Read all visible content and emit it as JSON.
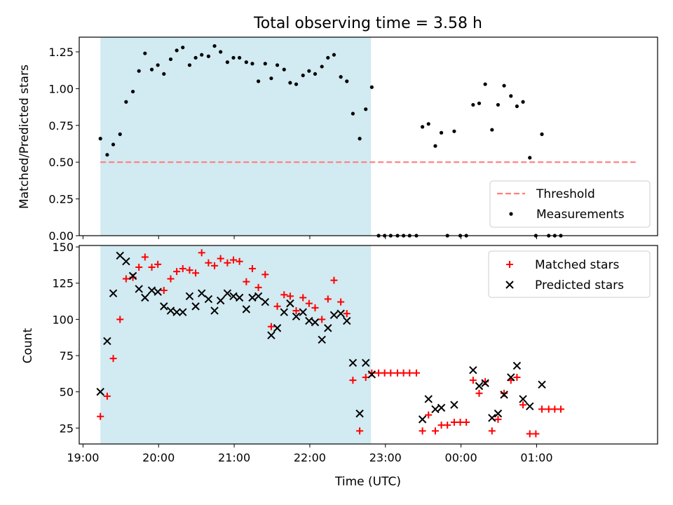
{
  "chart_data": [
    {
      "type": "scatter",
      "title": "Total observing time = 3.58 h",
      "ylabel": "Matched/Predicted stars",
      "xlabel": "",
      "x_unit": "hours_utc_since_19:00",
      "xlim": [
        18.95,
        26.6
      ],
      "ylim": [
        0.0,
        1.35
      ],
      "yticks": [
        "0.00",
        "0.25",
        "0.50",
        "0.75",
        "1.00",
        "1.25"
      ],
      "ytick_values": [
        0,
        0.25,
        0.5,
        0.75,
        1.0,
        1.25
      ],
      "shaded_span": [
        19.23,
        22.81
      ],
      "shade_color": "#add8e6",
      "grid": false,
      "legend_position": "lower-right",
      "threshold": {
        "name": "Threshold",
        "value": 0.5,
        "x_range": [
          19.23,
          26.31
        ],
        "color": "#ff7f7f",
        "style": "dashed"
      },
      "series": [
        {
          "name": "Measurements",
          "color": "#000000",
          "marker": "dot",
          "points": [
            [
              19.23,
              0.66
            ],
            [
              19.32,
              0.55
            ],
            [
              19.4,
              0.62
            ],
            [
              19.49,
              0.69
            ],
            [
              19.57,
              0.91
            ],
            [
              19.66,
              0.98
            ],
            [
              19.74,
              1.12
            ],
            [
              19.82,
              1.24
            ],
            [
              19.91,
              1.13
            ],
            [
              19.99,
              1.16
            ],
            [
              20.07,
              1.1
            ],
            [
              20.16,
              1.2
            ],
            [
              20.24,
              1.26
            ],
            [
              20.32,
              1.28
            ],
            [
              20.41,
              1.16
            ],
            [
              20.49,
              1.21
            ],
            [
              20.57,
              1.23
            ],
            [
              20.66,
              1.22
            ],
            [
              20.74,
              1.29
            ],
            [
              20.82,
              1.25
            ],
            [
              20.91,
              1.18
            ],
            [
              20.99,
              1.21
            ],
            [
              21.07,
              1.21
            ],
            [
              21.16,
              1.18
            ],
            [
              21.24,
              1.17
            ],
            [
              21.32,
              1.05
            ],
            [
              21.41,
              1.17
            ],
            [
              21.49,
              1.07
            ],
            [
              21.57,
              1.16
            ],
            [
              21.66,
              1.13
            ],
            [
              21.74,
              1.04
            ],
            [
              21.82,
              1.03
            ],
            [
              21.91,
              1.09
            ],
            [
              21.99,
              1.12
            ],
            [
              22.07,
              1.1
            ],
            [
              22.16,
              1.15
            ],
            [
              22.24,
              1.21
            ],
            [
              22.32,
              1.23
            ],
            [
              22.41,
              1.08
            ],
            [
              22.49,
              1.05
            ],
            [
              22.57,
              0.83
            ],
            [
              22.66,
              0.66
            ],
            [
              22.74,
              0.86
            ],
            [
              22.82,
              1.01
            ],
            [
              22.91,
              0.0
            ],
            [
              22.99,
              0.0
            ],
            [
              23.07,
              0.0
            ],
            [
              23.16,
              0.0
            ],
            [
              23.24,
              0.0
            ],
            [
              23.32,
              0.0
            ],
            [
              23.41,
              0.0
            ],
            [
              23.49,
              0.74
            ],
            [
              23.57,
              0.76
            ],
            [
              23.66,
              0.61
            ],
            [
              23.74,
              0.7
            ],
            [
              23.82,
              0.0
            ],
            [
              23.91,
              0.71
            ],
            [
              23.99,
              0.0
            ],
            [
              24.07,
              0.0
            ],
            [
              24.16,
              0.89
            ],
            [
              24.24,
              0.9
            ],
            [
              24.32,
              1.03
            ],
            [
              24.41,
              0.72
            ],
            [
              24.49,
              0.89
            ],
            [
              24.57,
              1.02
            ],
            [
              24.66,
              0.95
            ],
            [
              24.74,
              0.88
            ],
            [
              24.82,
              0.91
            ],
            [
              24.91,
              0.53
            ],
            [
              24.99,
              0.0
            ],
            [
              25.07,
              0.69
            ],
            [
              25.16,
              0.0
            ],
            [
              25.24,
              0.0
            ],
            [
              25.32,
              0.0
            ]
          ]
        }
      ]
    },
    {
      "type": "scatter",
      "title": "",
      "ylabel": "Count",
      "xlabel": "Time (UTC)",
      "x_unit": "hours_utc_since_19:00",
      "xlim": [
        18.95,
        26.6
      ],
      "ylim": [
        14,
        151
      ],
      "xticks": [
        "19:00",
        "20:00",
        "21:00",
        "22:00",
        "23:00",
        "00:00",
        "01:00"
      ],
      "xtick_values": [
        19,
        20,
        21,
        22,
        23,
        24,
        25
      ],
      "yticks": [
        "25",
        "50",
        "75",
        "100",
        "125",
        "150"
      ],
      "ytick_values": [
        25,
        50,
        75,
        100,
        125,
        150
      ],
      "shaded_span": [
        19.23,
        22.81
      ],
      "shade_color": "#add8e6",
      "grid": false,
      "legend_position": "upper-right",
      "series": [
        {
          "name": "Matched stars",
          "color": "#ff0000",
          "marker": "plus",
          "points": [
            [
              19.23,
              33
            ],
            [
              19.32,
              47
            ],
            [
              19.4,
              73
            ],
            [
              19.49,
              100
            ],
            [
              19.57,
              128
            ],
            [
              19.66,
              129
            ],
            [
              19.74,
              136
            ],
            [
              19.82,
              143
            ],
            [
              19.91,
              136
            ],
            [
              19.99,
              138
            ],
            [
              20.07,
              120
            ],
            [
              20.16,
              128
            ],
            [
              20.24,
              133
            ],
            [
              20.32,
              135
            ],
            [
              20.41,
              134
            ],
            [
              20.49,
              132
            ],
            [
              20.57,
              146
            ],
            [
              20.66,
              139
            ],
            [
              20.74,
              137
            ],
            [
              20.82,
              142
            ],
            [
              20.91,
              139
            ],
            [
              20.99,
              141
            ],
            [
              21.07,
              140
            ],
            [
              21.16,
              126
            ],
            [
              21.24,
              135
            ],
            [
              21.32,
              122
            ],
            [
              21.41,
              131
            ],
            [
              21.49,
              95
            ],
            [
              21.57,
              109
            ],
            [
              21.66,
              117
            ],
            [
              21.74,
              116
            ],
            [
              21.82,
              106
            ],
            [
              21.91,
              115
            ],
            [
              21.99,
              111
            ],
            [
              22.07,
              108
            ],
            [
              22.16,
              100
            ],
            [
              22.24,
              114
            ],
            [
              22.32,
              127
            ],
            [
              22.41,
              112
            ],
            [
              22.49,
              104
            ],
            [
              22.57,
              58
            ],
            [
              22.66,
              23
            ],
            [
              22.74,
              60
            ],
            [
              22.82,
              63
            ],
            [
              22.91,
              63
            ],
            [
              22.99,
              63
            ],
            [
              23.07,
              63
            ],
            [
              23.16,
              63
            ],
            [
              23.24,
              63
            ],
            [
              23.32,
              63
            ],
            [
              23.41,
              63
            ],
            [
              23.49,
              23
            ],
            [
              23.57,
              34
            ],
            [
              23.66,
              23
            ],
            [
              23.74,
              27
            ],
            [
              23.82,
              27
            ],
            [
              23.91,
              29
            ],
            [
              23.99,
              29
            ],
            [
              24.07,
              29
            ],
            [
              24.16,
              58
            ],
            [
              24.24,
              49
            ],
            [
              24.32,
              57
            ],
            [
              24.41,
              23
            ],
            [
              24.49,
              31
            ],
            [
              24.57,
              49
            ],
            [
              24.66,
              58
            ],
            [
              24.74,
              60
            ],
            [
              24.82,
              41
            ],
            [
              24.91,
              21
            ],
            [
              24.99,
              21
            ],
            [
              25.07,
              38
            ],
            [
              25.16,
              38
            ],
            [
              25.24,
              38
            ],
            [
              25.32,
              38
            ]
          ]
        },
        {
          "name": "Predicted stars",
          "color": "#000000",
          "marker": "x",
          "points": [
            [
              19.23,
              50
            ],
            [
              19.32,
              85
            ],
            [
              19.4,
              118
            ],
            [
              19.49,
              144
            ],
            [
              19.57,
              140
            ],
            [
              19.66,
              130
            ],
            [
              19.74,
              121
            ],
            [
              19.82,
              115
            ],
            [
              19.91,
              120
            ],
            [
              19.99,
              119
            ],
            [
              20.07,
              109
            ],
            [
              20.16,
              106
            ],
            [
              20.24,
              105
            ],
            [
              20.32,
              105
            ],
            [
              20.41,
              116
            ],
            [
              20.49,
              109
            ],
            [
              20.57,
              118
            ],
            [
              20.66,
              114
            ],
            [
              20.74,
              106
            ],
            [
              20.82,
              113
            ],
            [
              20.91,
              118
            ],
            [
              20.99,
              116
            ],
            [
              21.07,
              115
            ],
            [
              21.16,
              107
            ],
            [
              21.24,
              115
            ],
            [
              21.32,
              116
            ],
            [
              21.41,
              112
            ],
            [
              21.49,
              89
            ],
            [
              21.57,
              94
            ],
            [
              21.66,
              105
            ],
            [
              21.74,
              111
            ],
            [
              21.82,
              102
            ],
            [
              21.91,
              105
            ],
            [
              21.99,
              99
            ],
            [
              22.07,
              98
            ],
            [
              22.16,
              86
            ],
            [
              22.24,
              94
            ],
            [
              22.32,
              103
            ],
            [
              22.41,
              104
            ],
            [
              22.49,
              99
            ],
            [
              22.57,
              70
            ],
            [
              22.66,
              35
            ],
            [
              22.74,
              70
            ],
            [
              22.82,
              62
            ],
            [
              23.49,
              31
            ],
            [
              23.57,
              45
            ],
            [
              23.66,
              38
            ],
            [
              23.74,
              39
            ],
            [
              23.91,
              41
            ],
            [
              24.16,
              65
            ],
            [
              24.24,
              54
            ],
            [
              24.32,
              56
            ],
            [
              24.41,
              32
            ],
            [
              24.49,
              35
            ],
            [
              24.57,
              48
            ],
            [
              24.66,
              60
            ],
            [
              24.74,
              68
            ],
            [
              24.82,
              45
            ],
            [
              24.91,
              40
            ],
            [
              25.07,
              55
            ]
          ]
        }
      ]
    }
  ]
}
